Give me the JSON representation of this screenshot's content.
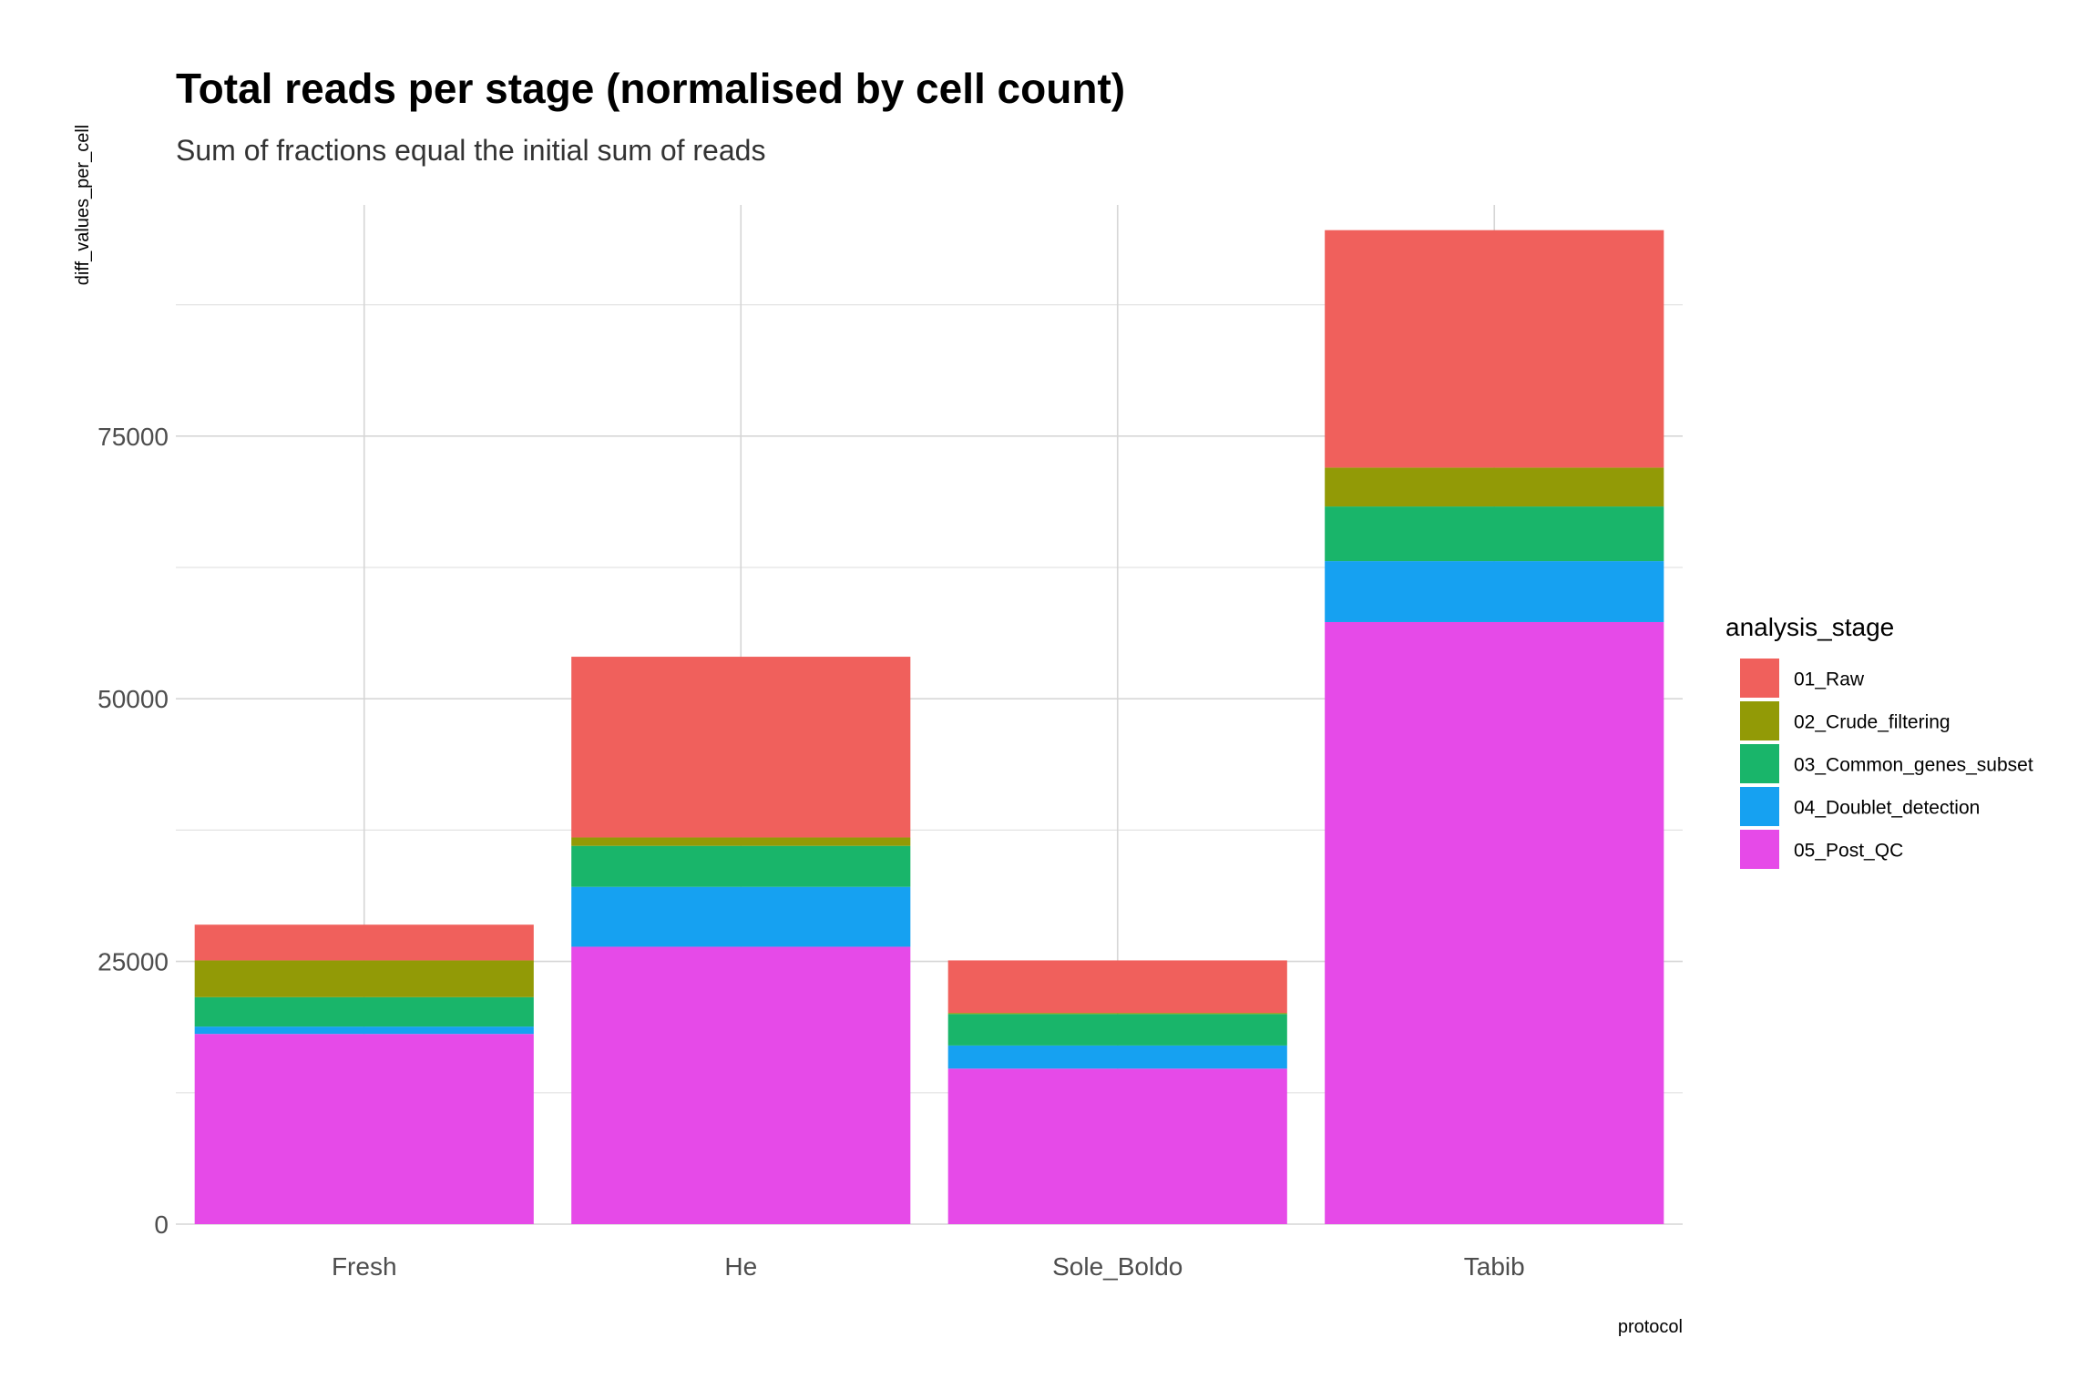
{
  "chart_data": {
    "type": "bar",
    "stacked": true,
    "title": "Total reads per stage (normalised by cell count)",
    "subtitle": "Sum of fractions equal the initial sum of reads",
    "xlabel": "protocol",
    "ylabel": "diff_values_per_cell",
    "categories": [
      "Fresh",
      "He",
      "Sole_Boldo",
      "Tabib"
    ],
    "ylim": [
      0,
      97000
    ],
    "y_ticks": [
      0,
      25000,
      50000,
      75000
    ],
    "y_tick_labels": [
      "0",
      "25000",
      "50000",
      "75000"
    ],
    "grid": true,
    "legend": {
      "title": "analysis_stage",
      "position": "right"
    },
    "series": [
      {
        "name": "05_Post_QC",
        "color": "#E64AE8",
        "values": [
          18100,
          26400,
          14800,
          57300
        ]
      },
      {
        "name": "04_Doublet_detection",
        "color": "#16A1F1",
        "values": [
          700,
          5700,
          2200,
          5800
        ]
      },
      {
        "name": "03_Common_genes_subset",
        "color": "#19B56A",
        "values": [
          2800,
          3900,
          3000,
          5200
        ]
      },
      {
        "name": "02_Crude_filtering",
        "color": "#929A06",
        "values": [
          3500,
          800,
          100,
          3700
        ]
      },
      {
        "name": "01_Raw",
        "color": "#F0605C",
        "values": [
          3400,
          17200,
          5000,
          22600
        ]
      }
    ],
    "legend_order": [
      "01_Raw",
      "02_Crude_filtering",
      "03_Common_genes_subset",
      "04_Doublet_detection",
      "05_Post_QC"
    ]
  }
}
